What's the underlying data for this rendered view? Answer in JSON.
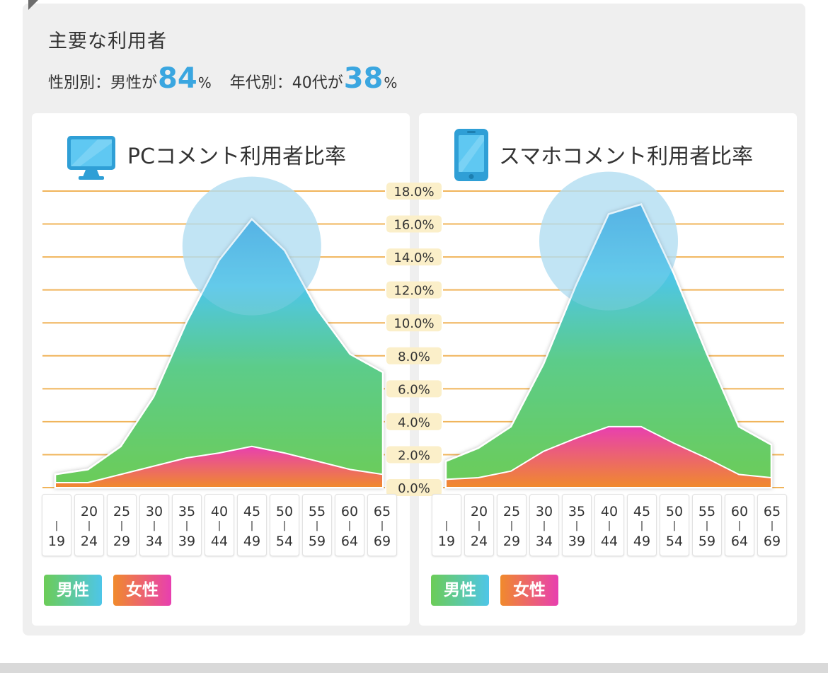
{
  "summary": {
    "title": "主要な利用者",
    "gender_prefix": "性別別：男性が",
    "gender_value": "84",
    "gender_unit": "%",
    "age_prefix": "年代別：40代が",
    "age_value": "38",
    "age_unit": "%"
  },
  "colors": {
    "accent": "#3aa6e0",
    "male_gradient": [
      "#6ccc57",
      "#4ec6e8",
      "#3aa6e0"
    ],
    "female_gradient": [
      "#f08a2c",
      "#e83fb0"
    ],
    "gridline": "#f0b45a"
  },
  "icons": {
    "pc": "pc-monitor-icon",
    "smartphone": "smartphone-icon"
  },
  "chart_data": [
    {
      "type": "area",
      "title": "PCコメント利用者比率",
      "categories": [
        "-19",
        "20-24",
        "25-29",
        "30-34",
        "35-39",
        "40-44",
        "45-49",
        "50-54",
        "55-59",
        "60-64",
        "65-69"
      ],
      "y_ticks": [
        "18.0%",
        "16.0%",
        "14.0%",
        "12.0%",
        "10.0%",
        "8.0%",
        "6.0%",
        "4.0%",
        "2.0%",
        "0.0%"
      ],
      "ylim": [
        0,
        18
      ],
      "stacked": true,
      "grid": true,
      "series": [
        {
          "name": "女性",
          "values": [
            0.3,
            0.3,
            0.8,
            1.3,
            1.8,
            2.1,
            2.5,
            2.1,
            1.6,
            1.1,
            0.8
          ]
        },
        {
          "name": "男性",
          "values": [
            0.5,
            0.8,
            1.7,
            4.2,
            8.2,
            11.7,
            13.8,
            12.3,
            9.2,
            7.0,
            6.2
          ]
        }
      ],
      "highlight": "45-49",
      "legend": [
        "男性",
        "女性"
      ],
      "legend_position": "bottom-left"
    },
    {
      "type": "area",
      "title": "スマホコメント利用者比率",
      "categories": [
        "-19",
        "20-24",
        "25-29",
        "30-34",
        "35-39",
        "40-44",
        "45-49",
        "50-54",
        "55-59",
        "60-64",
        "65-69"
      ],
      "y_ticks": [
        "18.0%",
        "16.0%",
        "14.0%",
        "12.0%",
        "10.0%",
        "8.0%",
        "6.0%",
        "4.0%",
        "2.0%",
        "0.0%"
      ],
      "ylim": [
        0,
        18
      ],
      "stacked": true,
      "grid": true,
      "series": [
        {
          "name": "女性",
          "values": [
            0.5,
            0.6,
            1.0,
            2.2,
            3.0,
            3.7,
            3.7,
            2.7,
            1.8,
            0.8,
            0.6
          ]
        },
        {
          "name": "男性",
          "values": [
            1.1,
            1.8,
            2.7,
            5.3,
            9.3,
            12.9,
            13.5,
            10.3,
            6.4,
            2.9,
            2.0
          ]
        }
      ],
      "highlight": "40-44",
      "legend": [
        "男性",
        "女性"
      ],
      "legend_position": "bottom-left"
    }
  ]
}
